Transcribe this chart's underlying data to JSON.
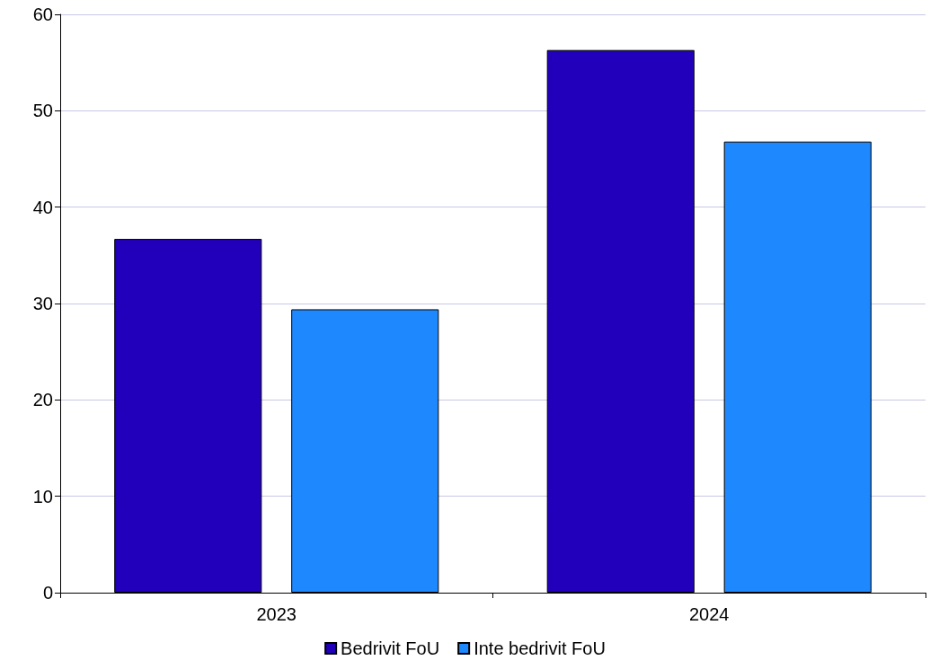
{
  "chart_data": {
    "type": "bar",
    "categories": [
      "2023",
      "2024"
    ],
    "series": [
      {
        "name": "Bedrivit FoU",
        "color": "#2200bb",
        "values": [
          36.7,
          56.3
        ]
      },
      {
        "name": "Inte bedrivit FoU",
        "color": "#1e88ff",
        "values": [
          29.4,
          46.8
        ]
      }
    ],
    "ylim": [
      0,
      60
    ],
    "yticks": [
      0,
      10,
      20,
      30,
      40,
      50,
      60
    ],
    "grid": "y",
    "legend": "bottom"
  }
}
